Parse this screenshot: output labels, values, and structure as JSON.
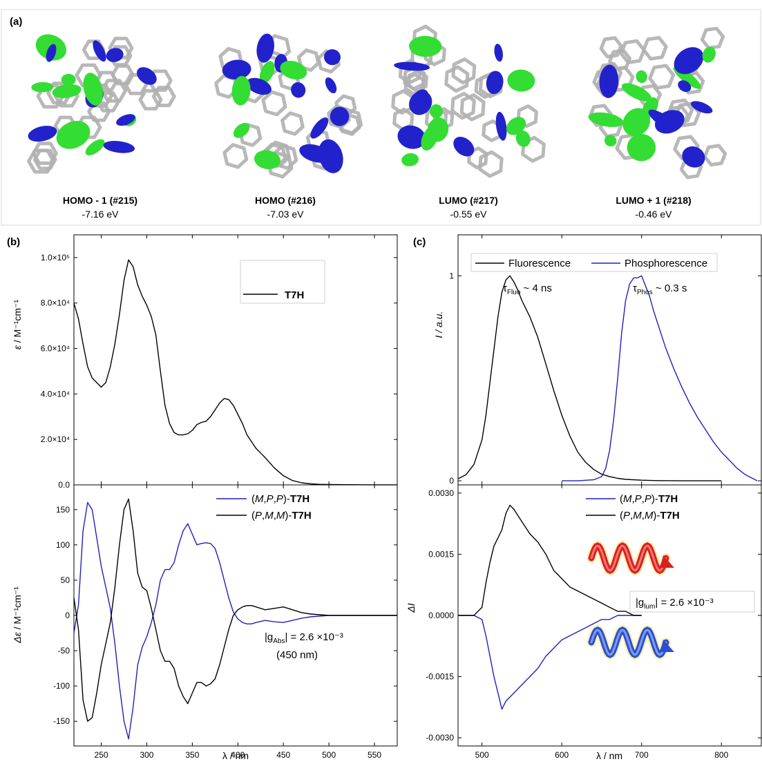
{
  "panel_a": {
    "letter": "(a)",
    "orbitals": [
      {
        "name": "HOMO - 1 (#215)",
        "energy": "-7.16 eV"
      },
      {
        "name": "HOMO (#216)",
        "energy": "-7.03 eV"
      },
      {
        "name": "LUMO (#217)",
        "energy": "-0.55 eV"
      },
      {
        "name": "LUMO + 1 (#218)",
        "energy": "-0.46 eV"
      }
    ],
    "colors": {
      "lobe_positive": "#33dd33",
      "lobe_negative": "#2222cc",
      "skeleton": "#b0b0b0"
    }
  },
  "panel_b": {
    "letter": "(b)",
    "top_ylabel_sym": "ε",
    "top_ylabel_unit": " / M⁻¹cm⁻¹",
    "top_legend": "T7H",
    "bottom_ylabel_sym": "Δε",
    "bottom_ylabel_unit": " / M⁻¹cm⁻¹",
    "xlabel": "λ / nm",
    "legend": [
      {
        "pre": "(",
        "it1": "M",
        "c1": ",",
        "it2": "P",
        "c2": ",",
        "it3": "P",
        "post": ")-",
        "bold": "T7H",
        "color": "#1f1fbf"
      },
      {
        "pre": "(",
        "it1": "P",
        "c1": ",",
        "it2": "M",
        "c2": ",",
        "it3": "M",
        "post": ")-",
        "bold": "T7H",
        "color": "#000000"
      }
    ],
    "g_text_pre": "|g",
    "g_text_sub": "Abs",
    "g_text_post": "| = 2.6 ×10⁻³",
    "g_wavelength": "(450 nm)"
  },
  "panel_c": {
    "letter": "(c)",
    "legend_top": [
      {
        "label": "Fluorescence",
        "color": "#000000"
      },
      {
        "label": "Phosphorescence",
        "color": "#1f1fbf"
      }
    ],
    "tau_fluo": {
      "sym": "τ",
      "sub": "Fluo",
      "val": " ~ 4 ns"
    },
    "tau_phos": {
      "sym": "τ",
      "sub": "Phos",
      "val": " ~ 0.3 s"
    },
    "top_ylabel": "I / a.u.",
    "bottom_ylabel": "ΔI",
    "xlabel": "λ / nm",
    "legend_bottom": [
      {
        "pre": "(",
        "it1": "M",
        "c1": ",",
        "it2": "P",
        "c2": ",",
        "it3": "P",
        "post": ")-",
        "bold": "T7H",
        "color": "#1f1fbf"
      },
      {
        "pre": "(",
        "it1": "P",
        "c1": ",",
        "it2": "M",
        "c2": ",",
        "it3": "M",
        "post": ")-",
        "bold": "T7H",
        "color": "#000000"
      }
    ],
    "g_text_pre": "|g",
    "g_text_sub": "lum",
    "g_text_post": "| = 2.6 ×10⁻³"
  },
  "chart_data": [
    {
      "type": "line",
      "panel": "b-top",
      "ylabel": "ε / M⁻¹cm⁻¹",
      "xlim": [
        220,
        575
      ],
      "ylim": [
        0,
        110000
      ],
      "yticks": [
        0,
        20000,
        40000,
        60000,
        80000,
        100000
      ],
      "ytick_labels": [
        "0.0",
        "2.0×10⁴",
        "4.0×10⁴",
        "6.0×10⁴",
        "8.0×10⁴",
        "1.0×10⁵"
      ],
      "series": [
        {
          "name": "T7H",
          "color": "#000000",
          "x": [
            220,
            225,
            230,
            235,
            240,
            245,
            250,
            255,
            260,
            265,
            270,
            275,
            280,
            285,
            290,
            295,
            300,
            305,
            310,
            315,
            320,
            325,
            330,
            335,
            340,
            345,
            350,
            355,
            360,
            365,
            370,
            375,
            380,
            385,
            390,
            395,
            400,
            405,
            410,
            415,
            420,
            430,
            440,
            450,
            460,
            470,
            480,
            490,
            500,
            520,
            550,
            575
          ],
          "y": [
            80000,
            73000,
            62000,
            52000,
            47000,
            45000,
            43000,
            45000,
            52000,
            62000,
            75000,
            90000,
            99000,
            96000,
            88000,
            83000,
            79000,
            74000,
            66000,
            50000,
            35000,
            27000,
            23000,
            22000,
            22000,
            22500,
            24000,
            26500,
            27500,
            28000,
            30000,
            33000,
            36000,
            38000,
            37500,
            35000,
            31000,
            27000,
            22000,
            19000,
            16000,
            12000,
            7500,
            4000,
            1900,
            900,
            450,
            250,
            150,
            80,
            40,
            20
          ]
        }
      ]
    },
    {
      "type": "line",
      "panel": "b-bottom",
      "xlabel": "λ / nm",
      "ylabel": "Δε / M⁻¹cm⁻¹",
      "xlim": [
        220,
        575
      ],
      "ylim": [
        -185,
        185
      ],
      "xticks": [
        250,
        300,
        350,
        400,
        450,
        500,
        550
      ],
      "yticks": [
        -150,
        -100,
        -50,
        0,
        50,
        100,
        150
      ],
      "series": [
        {
          "name": "(M,P,P)-T7H",
          "color": "#1f1fbf",
          "x": [
            220,
            225,
            230,
            235,
            240,
            245,
            250,
            255,
            260,
            265,
            270,
            275,
            280,
            285,
            290,
            295,
            300,
            305,
            310,
            315,
            320,
            325,
            330,
            335,
            340,
            345,
            350,
            355,
            360,
            365,
            370,
            375,
            380,
            385,
            390,
            395,
            400,
            405,
            410,
            415,
            420,
            430,
            440,
            450,
            460,
            470,
            480,
            490,
            500,
            520,
            550,
            575
          ],
          "y": [
            -25,
            15,
            120,
            160,
            150,
            110,
            70,
            40,
            10,
            -40,
            -100,
            -150,
            -175,
            -130,
            -70,
            -45,
            -30,
            -10,
            15,
            50,
            65,
            65,
            75,
            100,
            120,
            130,
            115,
            100,
            102,
            103,
            102,
            95,
            75,
            50,
            25,
            5,
            -5,
            -10,
            -12,
            -12,
            -10,
            -7,
            -9,
            -10,
            -7,
            -4,
            -2,
            -1,
            0,
            0,
            0,
            0
          ]
        },
        {
          "name": "(P,M,M)-T7H",
          "color": "#000000",
          "x": [
            220,
            225,
            230,
            235,
            240,
            245,
            250,
            255,
            260,
            265,
            270,
            275,
            280,
            285,
            290,
            295,
            300,
            305,
            310,
            315,
            320,
            325,
            330,
            335,
            340,
            345,
            350,
            355,
            360,
            365,
            370,
            375,
            380,
            385,
            390,
            395,
            400,
            405,
            410,
            415,
            420,
            430,
            440,
            450,
            460,
            470,
            480,
            490,
            500,
            520,
            550,
            575
          ],
          "y": [
            25,
            -20,
            -120,
            -150,
            -145,
            -110,
            -70,
            -40,
            -10,
            40,
            100,
            150,
            165,
            120,
            60,
            40,
            35,
            10,
            -20,
            -50,
            -65,
            -65,
            -75,
            -100,
            -115,
            -125,
            -110,
            -95,
            -95,
            -100,
            -97,
            -90,
            -70,
            -45,
            -20,
            0,
            8,
            12,
            14,
            14,
            12,
            8,
            10,
            12,
            8,
            4,
            2,
            1,
            0,
            0,
            0,
            0
          ]
        }
      ]
    },
    {
      "type": "line",
      "panel": "c-top",
      "ylabel": "I / a.u.",
      "xlim": [
        470,
        850
      ],
      "ylim": [
        -0.02,
        1.2
      ],
      "yticks": [
        0,
        1
      ],
      "series": [
        {
          "name": "Fluorescence",
          "color": "#000000",
          "x": [
            470,
            480,
            490,
            500,
            505,
            510,
            515,
            520,
            525,
            530,
            535,
            540,
            545,
            550,
            560,
            570,
            580,
            590,
            600,
            610,
            620,
            630,
            640,
            650,
            660,
            670,
            680,
            700,
            720,
            750,
            780,
            800
          ],
          "y": [
            0.01,
            0.03,
            0.08,
            0.2,
            0.32,
            0.48,
            0.64,
            0.8,
            0.92,
            0.98,
            1.0,
            0.97,
            0.93,
            0.88,
            0.8,
            0.7,
            0.57,
            0.44,
            0.32,
            0.22,
            0.14,
            0.09,
            0.055,
            0.032,
            0.02,
            0.012,
            0.007,
            0.003,
            0.001,
            0,
            0,
            0
          ]
        },
        {
          "name": "Phosphorescence",
          "color": "#1f1fbf",
          "x": [
            600,
            620,
            640,
            650,
            655,
            660,
            665,
            670,
            675,
            680,
            685,
            690,
            695,
            700,
            705,
            710,
            715,
            720,
            730,
            740,
            750,
            760,
            770,
            780,
            790,
            800,
            810,
            820,
            830,
            840,
            845
          ],
          "y": [
            0,
            0,
            0.005,
            0.02,
            0.06,
            0.15,
            0.3,
            0.5,
            0.72,
            0.88,
            0.96,
            0.99,
            0.99,
            1.0,
            0.95,
            0.9,
            0.83,
            0.77,
            0.65,
            0.55,
            0.46,
            0.38,
            0.31,
            0.25,
            0.19,
            0.14,
            0.1,
            0.06,
            0.03,
            0.01,
            0
          ]
        }
      ]
    },
    {
      "type": "line",
      "panel": "c-bottom",
      "xlabel": "λ / nm",
      "ylabel": "ΔI",
      "xlim": [
        470,
        850
      ],
      "ylim": [
        -0.0032,
        0.0032
      ],
      "xticks": [
        500,
        600,
        700,
        800
      ],
      "yticks": [
        -0.003,
        -0.0015,
        0.0,
        0.0015,
        0.003
      ],
      "ytick_labels": [
        "-0.0030",
        "-0.0015",
        "0.0000",
        "0.0015",
        "0.0030"
      ],
      "series": [
        {
          "name": "(M,P,P)-T7H",
          "color": "#1f1fbf",
          "x": [
            470,
            480,
            490,
            500,
            505,
            510,
            515,
            520,
            525,
            530,
            535,
            540,
            550,
            560,
            570,
            580,
            590,
            600,
            610,
            620,
            630,
            640,
            650,
            660,
            670,
            680,
            690,
            700
          ],
          "y": [
            0,
            0,
            0,
            -0.0001,
            -0.0005,
            -0.001,
            -0.0015,
            -0.0019,
            -0.0023,
            -0.0021,
            -0.002,
            -0.0019,
            -0.0017,
            -0.0015,
            -0.0013,
            -0.001,
            -0.0008,
            -0.0006,
            -0.0005,
            -0.0004,
            -0.0003,
            -0.0002,
            -0.0001,
            -0.0001,
            0,
            0,
            0,
            0
          ]
        },
        {
          "name": "(P,M,M)-T7H",
          "color": "#000000",
          "x": [
            470,
            480,
            490,
            500,
            505,
            510,
            515,
            520,
            525,
            530,
            535,
            540,
            550,
            560,
            570,
            580,
            590,
            600,
            610,
            620,
            630,
            640,
            650,
            660,
            670,
            680,
            690,
            700
          ],
          "y": [
            0,
            0,
            0,
            0.0002,
            0.0008,
            0.0013,
            0.0017,
            0.0019,
            0.0021,
            0.0025,
            0.0027,
            0.0026,
            0.0023,
            0.002,
            0.0018,
            0.0015,
            0.0011,
            0.0009,
            0.0007,
            0.0006,
            0.0005,
            0.0004,
            0.0003,
            0.0002,
            0.0001,
            0.0001,
            0,
            0
          ]
        }
      ]
    }
  ]
}
